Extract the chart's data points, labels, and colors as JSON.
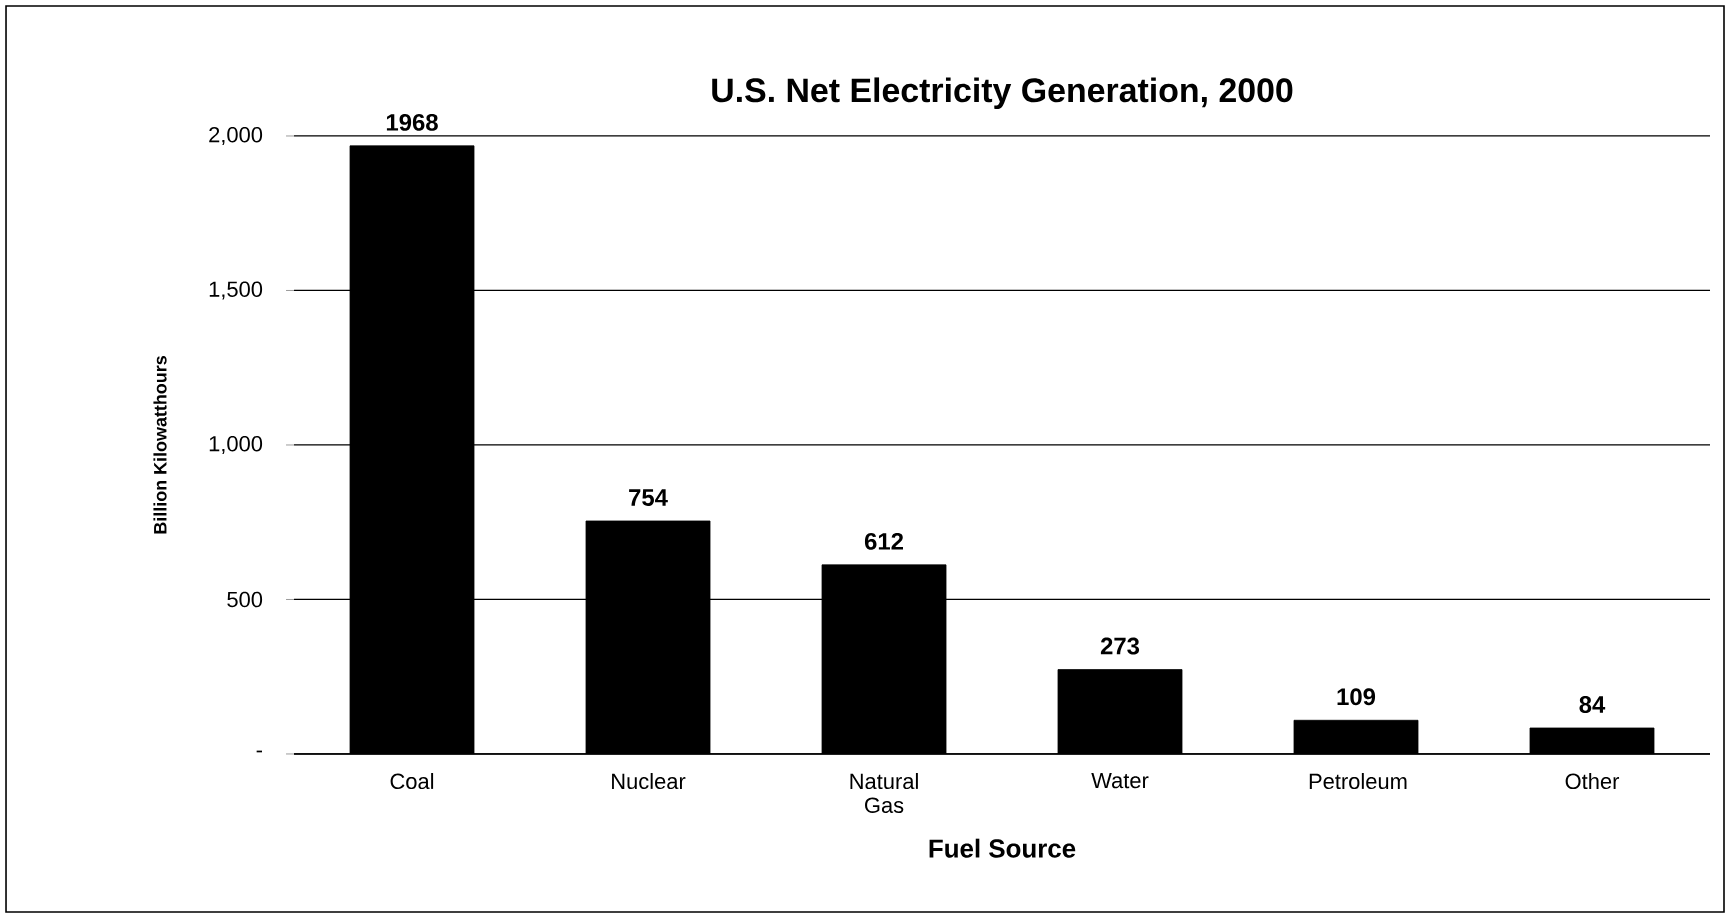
{
  "chart_data": {
    "type": "bar",
    "title": "U.S. Net Electricity Generation, 2000",
    "xlabel": "Fuel Source",
    "ylabel": "Billion Kilowatthours",
    "categories": [
      "Coal",
      "Nuclear",
      "Natural Gas",
      "Water",
      "Petroleum",
      "Other"
    ],
    "values": [
      1968,
      754,
      612,
      273,
      109,
      84
    ],
    "color": "#000000",
    "ylim": [
      0,
      2000
    ],
    "yticks": [
      {
        "value": 0,
        "label": "-"
      },
      {
        "value": 500,
        "label": "500"
      },
      {
        "value": 1000,
        "label": "1,000"
      },
      {
        "value": 1500,
        "label": "1,500"
      },
      {
        "value": 2000,
        "label": "2,000"
      }
    ],
    "grid": "y",
    "data_labels": true
  }
}
